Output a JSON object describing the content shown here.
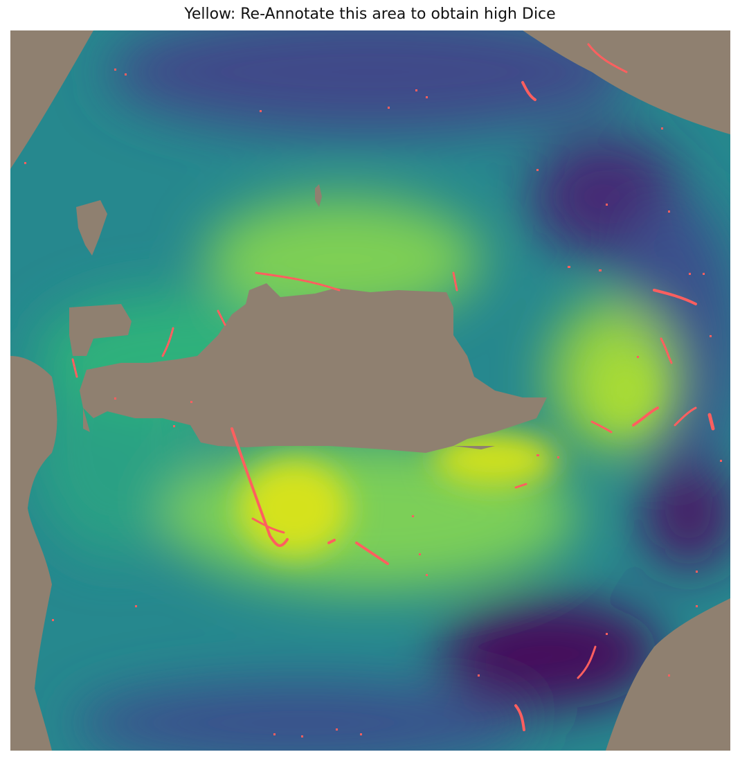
{
  "figure": {
    "title": "Yellow: Re-Annotate this area to obtain high Dice"
  },
  "colors": {
    "background_mask": "#8f8070",
    "viridis_dark": "#440e5c",
    "viridis_blue": "#3b528b",
    "viridis_teal": "#21918c",
    "viridis_green": "#5ec962",
    "viridis_yellow": "#d5e21a",
    "annotation_lines": "#ff5f5f"
  },
  "colormap": "viridis"
}
